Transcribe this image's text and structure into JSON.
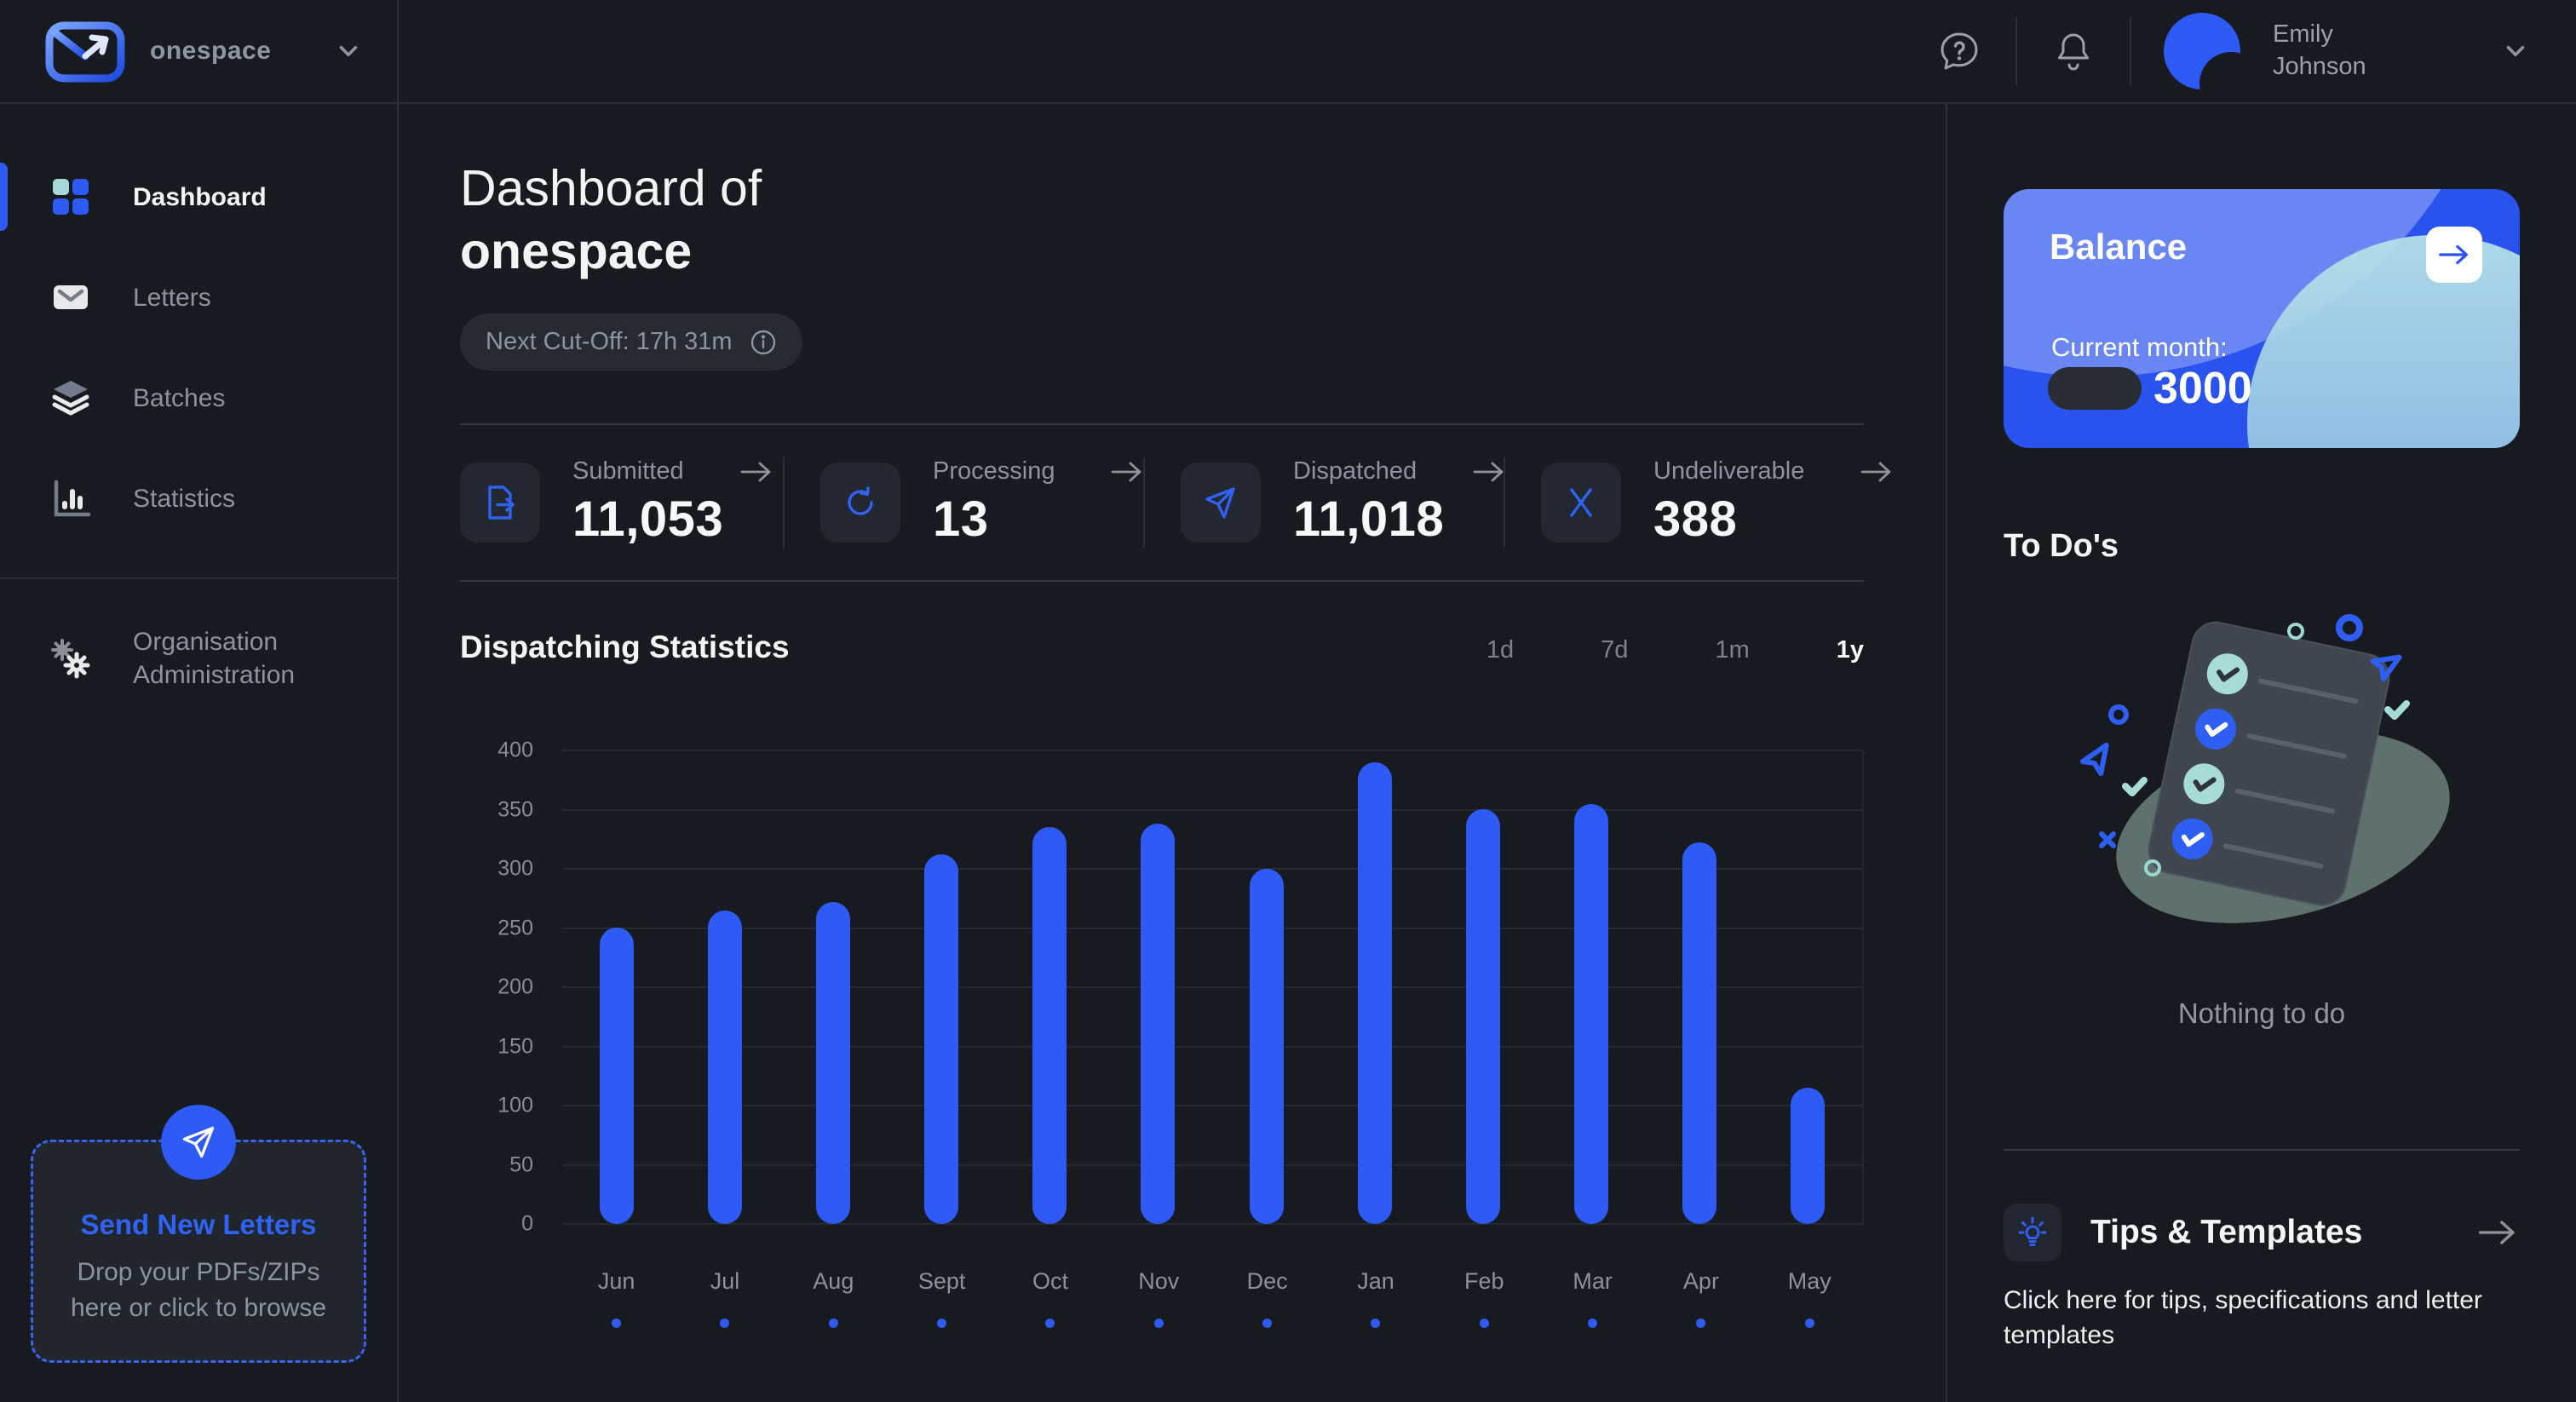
{
  "app": {
    "name": "onespace"
  },
  "topbar": {
    "user_name": "Emily Johnson"
  },
  "sidebar": {
    "items": [
      {
        "label": "Dashboard",
        "active": true
      },
      {
        "label": "Letters"
      },
      {
        "label": "Batches"
      },
      {
        "label": "Statistics"
      },
      {
        "label": "Organisation Administration"
      }
    ],
    "dropzone": {
      "title": "Send New Letters",
      "subtitle": "Drop your PDFs/ZIPs here or click to browse"
    }
  },
  "header": {
    "title_line1": "Dashboard of",
    "title_line2": "onespace",
    "cutoff": "Next Cut-Off: 17h 31m"
  },
  "stats": [
    {
      "label": "Submitted",
      "value": "11,053",
      "icon": "document-export-icon"
    },
    {
      "label": "Processing",
      "value": "13",
      "icon": "refresh-icon"
    },
    {
      "label": "Dispatched",
      "value": "11,018",
      "icon": "paper-plane-icon"
    },
    {
      "label": "Undeliverable",
      "value": "388",
      "icon": "x-icon"
    }
  ],
  "chart": {
    "heading": "Dispatching Statistics",
    "ranges": [
      {
        "label": "1d",
        "active": false
      },
      {
        "label": "7d",
        "active": false
      },
      {
        "label": "1m",
        "active": false
      },
      {
        "label": "1y",
        "active": true
      }
    ]
  },
  "chart_data": {
    "type": "bar",
    "title": "Dispatching Statistics",
    "categories": [
      "Jun",
      "Jul",
      "Aug",
      "Sept",
      "Oct",
      "Nov",
      "Dec",
      "Jan",
      "Feb",
      "Mar",
      "Apr",
      "May"
    ],
    "values": [
      250,
      265,
      272,
      312,
      335,
      338,
      300,
      390,
      350,
      355,
      322,
      115
    ],
    "xlabel": "",
    "ylabel": "",
    "ylim": [
      0,
      400
    ],
    "y_ticks": [
      400,
      350,
      300,
      250,
      200,
      150,
      100,
      50,
      0
    ],
    "grid": true,
    "legend": "none",
    "bar_color": "#2e5bf6",
    "category_marker_color": "#2e5bf6"
  },
  "right_panel": {
    "balance": {
      "title": "Balance",
      "current_month_label": "Current month:",
      "amount": "3000"
    },
    "todos": {
      "title": "To Do's",
      "empty_text": "Nothing to do"
    },
    "tips": {
      "title": "Tips & Templates",
      "description": "Click here for tips, specifications and letter templates"
    }
  },
  "colors": {
    "accent": "#2e5bf6",
    "teal": "#a5d8d6",
    "balance_bg": "#2a52ee",
    "page_bg": "#171a20"
  }
}
